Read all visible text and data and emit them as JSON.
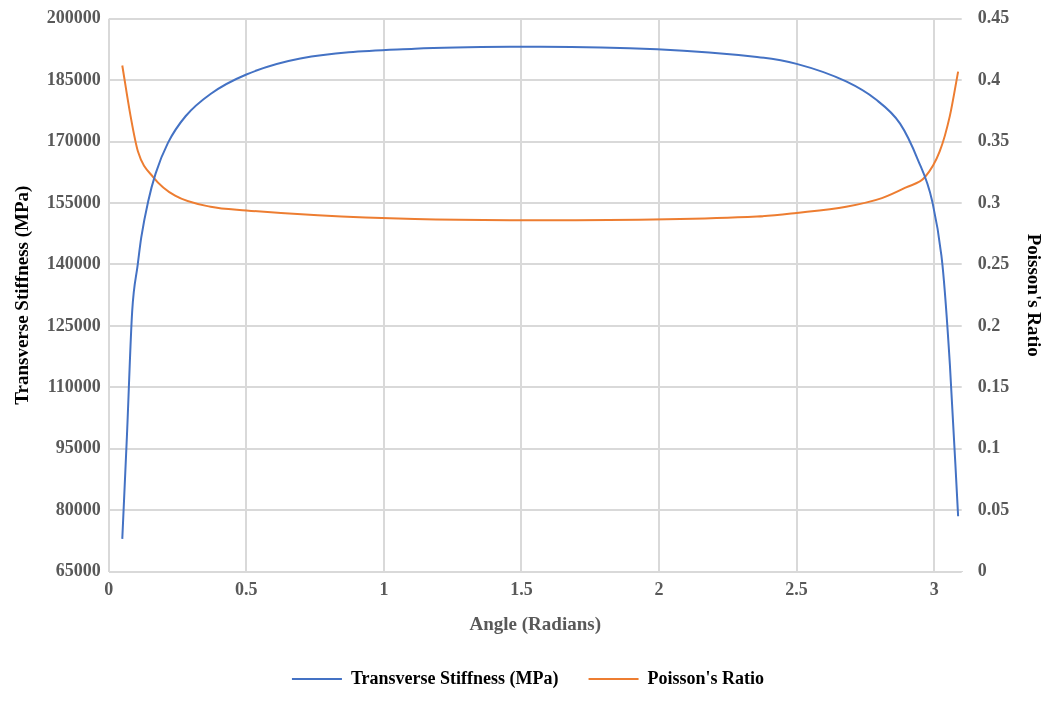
{
  "chart_data": {
    "type": "line",
    "xlabel": "Angle (Radians)",
    "ylabel": "Transverse Stiffness (MPa)",
    "y2label": "Poisson's Ratio",
    "xlim": [
      0,
      3.1
    ],
    "xticks": [
      0,
      0.5,
      1,
      1.5,
      2,
      2.5,
      3
    ],
    "ylim": [
      65000,
      200000
    ],
    "yticks": [
      65000,
      80000,
      95000,
      110000,
      125000,
      140000,
      155000,
      170000,
      185000,
      200000
    ],
    "y2lim": [
      0,
      0.45
    ],
    "y2ticks": [
      0,
      0.05,
      0.1,
      0.15,
      0.2,
      0.25,
      0.3,
      0.35,
      0.4,
      0.45
    ],
    "grid": true,
    "legend": "bottom",
    "marker": "none",
    "line_style": "solid",
    "series": [
      {
        "name": "Transverse Stiffness (MPa)",
        "color": "#4472c4",
        "x": [
          0.049,
          0.066,
          0.085,
          0.105,
          0.118,
          0.143,
          0.17,
          0.215,
          0.279,
          0.371,
          0.5,
          0.696,
          1.112,
          1.57,
          2.356,
          2.5,
          2.68,
          2.786,
          2.876,
          2.94,
          2.993,
          3.03,
          3.057,
          3.087
        ],
        "values": [
          73000,
          98300,
          128600,
          139900,
          146600,
          155400,
          162200,
          169700,
          176200,
          181700,
          186400,
          190300,
          192700,
          193200,
          190700,
          189000,
          184700,
          180400,
          174400,
          165700,
          155400,
          139900,
          115600,
          78500
        ]
      },
      {
        "name": "Poisson's Ratio",
        "color": "#ed7d31",
        "axis": "y2",
        "x": [
          0.049,
          0.079,
          0.106,
          0.162,
          0.241,
          0.37,
          0.5,
          0.76,
          1.112,
          1.57,
          2.356,
          2.5,
          2.68,
          2.81,
          2.9,
          2.966,
          3.02,
          3.057,
          3.087
        ],
        "values": [
          0.412,
          0.371,
          0.342,
          0.321,
          0.306,
          0.297,
          0.294,
          0.29,
          0.287,
          0.286,
          0.289,
          0.292,
          0.297,
          0.304,
          0.313,
          0.321,
          0.342,
          0.371,
          0.407
        ]
      }
    ]
  }
}
